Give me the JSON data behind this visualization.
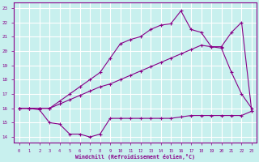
{
  "bg_color": "#c8f0ee",
  "line_color": "#880088",
  "grid_color": "#ffffff",
  "xlabel": "Windchill (Refroidissement éolien,°C)",
  "x_ticks": [
    0,
    1,
    2,
    3,
    4,
    5,
    6,
    7,
    8,
    9,
    10,
    11,
    12,
    13,
    14,
    15,
    16,
    17,
    18,
    19,
    20,
    21,
    22,
    23
  ],
  "y_ticks": [
    14,
    15,
    16,
    17,
    18,
    19,
    20,
    21,
    22,
    23
  ],
  "xlim": [
    -0.5,
    23.5
  ],
  "ylim": [
    13.6,
    23.4
  ],
  "line1_x": [
    0,
    1,
    2,
    3,
    4,
    5,
    6,
    7,
    8,
    9,
    10,
    11,
    12,
    13,
    14,
    15,
    16,
    17,
    18,
    19,
    20,
    21,
    22,
    23
  ],
  "line1_y": [
    16.0,
    16.0,
    15.9,
    15.0,
    14.9,
    14.2,
    14.2,
    14.0,
    14.2,
    15.3,
    15.3,
    15.3,
    15.3,
    15.3,
    15.3,
    15.3,
    15.4,
    15.5,
    15.5,
    15.5,
    15.5,
    15.5,
    15.5,
    15.8
  ],
  "line2_x": [
    0,
    1,
    2,
    3,
    4,
    5,
    6,
    7,
    8,
    9,
    10,
    11,
    12,
    13,
    14,
    15,
    16,
    17,
    18,
    19,
    20,
    21,
    22,
    23
  ],
  "line2_y": [
    16.0,
    16.0,
    16.0,
    16.0,
    16.3,
    16.6,
    16.9,
    17.2,
    17.5,
    17.7,
    18.0,
    18.3,
    18.6,
    18.9,
    19.2,
    19.5,
    19.8,
    20.1,
    20.4,
    20.3,
    20.2,
    18.5,
    17.0,
    16.0
  ],
  "line3_x": [
    0,
    1,
    2,
    3,
    4,
    5,
    6,
    7,
    8,
    9,
    10,
    11,
    12,
    13,
    14,
    15,
    16,
    17,
    18,
    19,
    20,
    21,
    22,
    23
  ],
  "line3_y": [
    16.0,
    16.0,
    16.0,
    16.0,
    16.5,
    17.0,
    17.5,
    18.0,
    18.5,
    19.5,
    20.5,
    20.8,
    21.0,
    21.5,
    21.8,
    21.9,
    22.8,
    21.5,
    21.3,
    20.3,
    20.3,
    21.3,
    22.0,
    15.8
  ]
}
